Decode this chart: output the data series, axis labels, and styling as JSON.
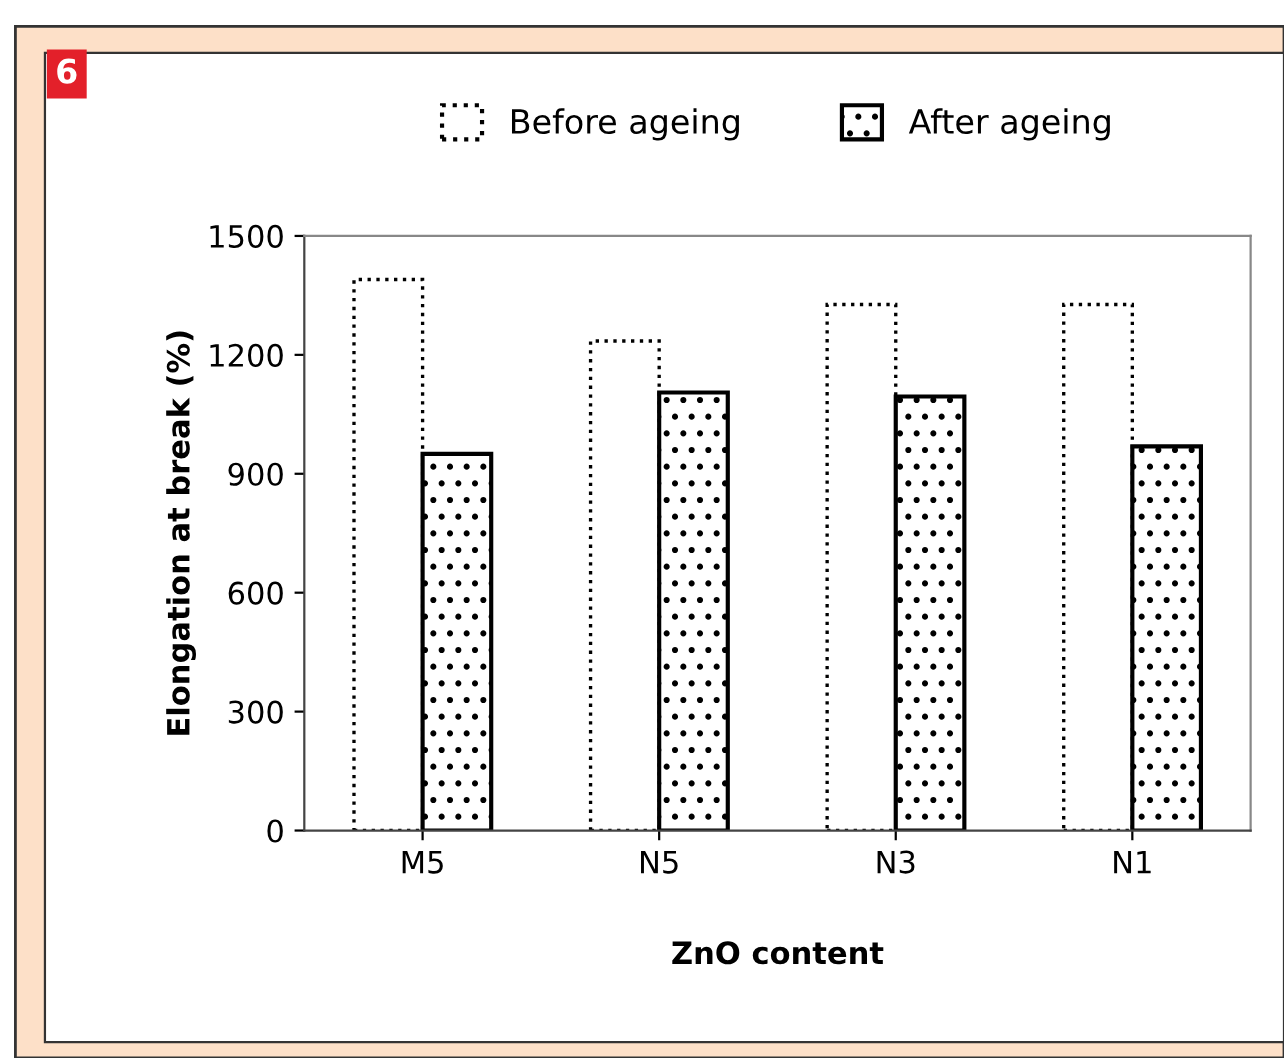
{
  "chart_data": {
    "type": "bar",
    "categories": [
      "M5",
      "N5",
      "N3",
      "N1"
    ],
    "series": [
      {
        "name": "Before ageing",
        "color": "#000000",
        "values": [
          1390,
          1235,
          1327,
          1327
        ],
        "line_style": "dotted"
      },
      {
        "name": "After ageing",
        "color": "#000000",
        "values": [
          950,
          1105,
          1095,
          969
        ],
        "line_style": "solid"
      }
    ],
    "xlabel": "ZnO content",
    "ylabel": "Elongation at break (%)",
    "ylim": [
      0,
      1500
    ],
    "yticks": [
      0,
      300,
      600,
      900,
      1200,
      1500
    ],
    "annotations": [
      "6"
    ],
    "legend": "top",
    "grid": false
  }
}
